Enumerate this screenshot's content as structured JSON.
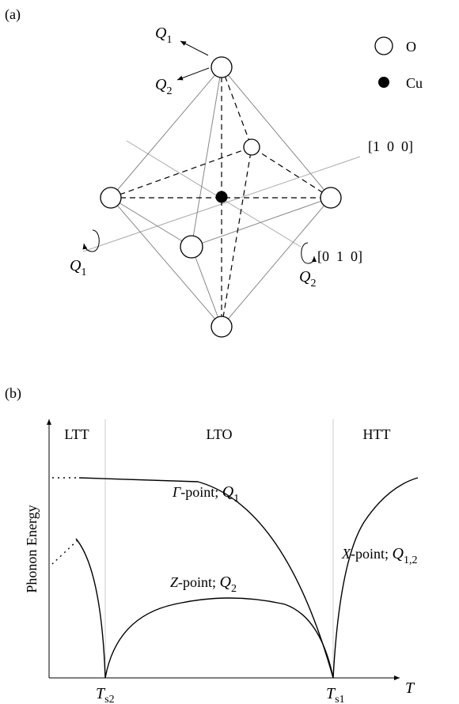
{
  "panel_a": {
    "label": "(a)",
    "legend": {
      "o_text": "O",
      "cu_text": "Cu"
    },
    "directions": {
      "d100": "[1  0  0]",
      "d010": "[0  1  0]"
    },
    "modes": {
      "top_q1": {
        "main": "Q",
        "sub": "1"
      },
      "top_q2": {
        "main": "Q",
        "sub": "2"
      },
      "left_q1": {
        "main": "Q",
        "sub": "1"
      },
      "right_q2": {
        "main": "Q",
        "sub": "2"
      }
    }
  },
  "panel_b": {
    "label": "(b)",
    "phases": {
      "ltt": "LTT",
      "lto": "LTO",
      "htt": "HTT"
    },
    "ylabel": "Phonon Energy",
    "xlabel": "T",
    "ticks": {
      "ts2": {
        "main": "T",
        "sub": "s2"
      },
      "ts1": {
        "main": "T",
        "sub": "s1"
      }
    },
    "curves": {
      "gamma": {
        "point": "Γ",
        "rest": "-point; ",
        "mode": "Q",
        "sub": "1"
      },
      "z": {
        "point": "Z",
        "rest": "-point; ",
        "mode": "Q",
        "sub": "2"
      },
      "x": {
        "point": "X",
        "rest": "-point; ",
        "mode": "Q",
        "sub": "1,2"
      }
    }
  }
}
